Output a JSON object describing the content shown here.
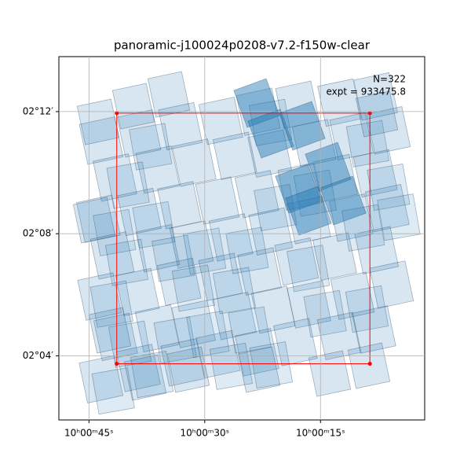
{
  "chart_data": {
    "type": "footprint",
    "title": "panoramic-j100024p0208-v7.2-f150w-clear",
    "annotations": [
      "N=322",
      "expt = 933475.8"
    ],
    "xlim": [
      48.9,
      1.5
    ],
    "xticks": [
      {
        "value": 45,
        "label": "10ʰ00ᵐ45ˢ"
      },
      {
        "value": 30,
        "label": "10ʰ00ᵐ30ˢ"
      },
      {
        "value": 15,
        "label": "10ʰ00ᵐ15ˢ"
      }
    ],
    "ylim": [
      1.9,
      13.8
    ],
    "yticks": [
      {
        "value": 4,
        "label": "02°04′"
      },
      {
        "value": 8,
        "label": "02°08′"
      },
      {
        "value": 12,
        "label": "02°12′"
      }
    ],
    "grid": true,
    "box": {
      "x": [
        41.4,
        8.6
      ],
      "y": [
        3.74,
        11.95
      ],
      "color": "#ff0000"
    },
    "footprint_color": "#1f77b4"
  }
}
